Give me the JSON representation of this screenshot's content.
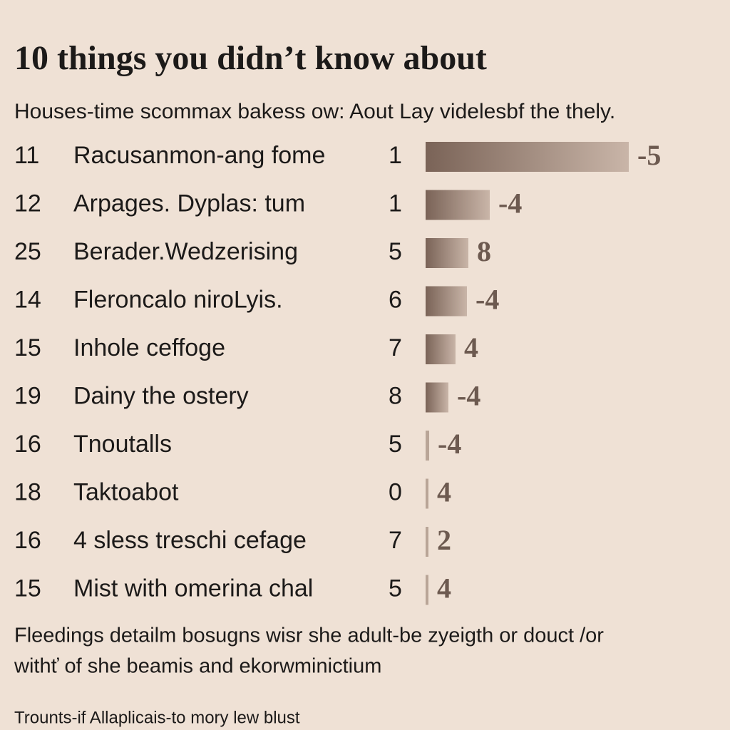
{
  "header": {
    "title": "10 things you didn’t know about",
    "subtitle": "Houses-time scommax bakess ow: Aout Lay videlesbf the thely."
  },
  "rows": [
    {
      "rank": "11",
      "label": "Racusanmon-ang fome",
      "count": "1",
      "score": "-5"
    },
    {
      "rank": "12",
      "label": "Arpages. Dyplas: tum",
      "count": "1",
      "score": "-4"
    },
    {
      "rank": "25",
      "label": "Berader.Wedzerising",
      "count": "5",
      "score": "8"
    },
    {
      "rank": "14",
      "label": "Fleroncalo niroLyis.",
      "count": "6",
      "score": "-4"
    },
    {
      "rank": "15",
      "label": "Inhole ceffoge",
      "count": "7",
      "score": "4"
    },
    {
      "rank": "19",
      "label": "Dainy the ostery",
      "count": "8",
      "score": "-4"
    },
    {
      "rank": "16",
      "label": "Tnoutalls",
      "count": "5",
      "score": "-4"
    },
    {
      "rank": "18",
      "label": "Taktoabot",
      "count": "0",
      "score": "4"
    },
    {
      "rank": "16",
      "label": "4 sless treschi cefage",
      "count": "7",
      "score": "2"
    },
    {
      "rank": "15",
      "label": "Mist with omerina chal",
      "count": "5",
      "score": "4"
    }
  ],
  "footer": {
    "lines": [
      "Fleedings detailm bosugns wisr she adult-be zyeigth or douct /or",
      "withť of she beamis and ekorwminictium"
    ],
    "note": "Trounts-if Allaplicais-to mory lew blust"
  }
}
